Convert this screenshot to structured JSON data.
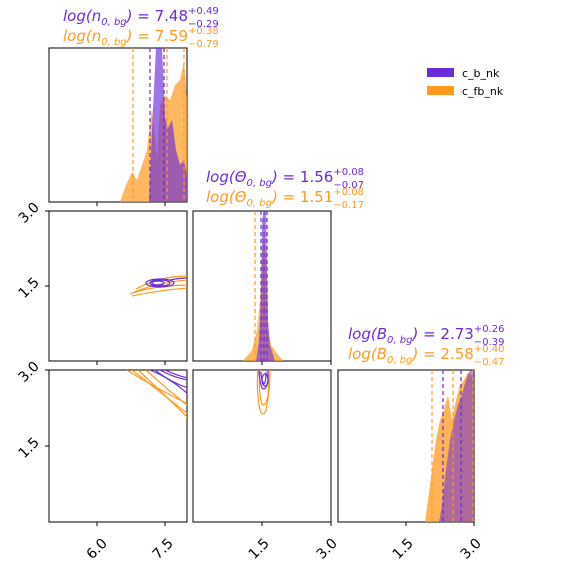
{
  "colors": {
    "c_b_nk": "#6a2bd9",
    "c_fb_nk": "#ff9a1f"
  },
  "legend": {
    "position": "top-right",
    "entries": [
      {
        "label": "c_b_nk",
        "color": "#6a2bd9"
      },
      {
        "label": "c_fb_nk",
        "color": "#ff9a1f"
      }
    ]
  },
  "titles": [
    {
      "param": "n",
      "lhs": "log(n",
      "sub": "0, bg",
      "rows": [
        {
          "series": "c_b_nk",
          "value": "7.48",
          "plus": "+0.49",
          "minus": "−0.29"
        },
        {
          "series": "c_fb_nk",
          "value": "7.59",
          "plus": "+0.38",
          "minus": "−0.79"
        }
      ]
    },
    {
      "param": "theta",
      "lhs": "log(Θ",
      "sub": "0, bg",
      "rows": [
        {
          "series": "c_b_nk",
          "value": "1.56",
          "plus": "+0.08",
          "minus": "−0.07"
        },
        {
          "series": "c_fb_nk",
          "value": "1.51",
          "plus": "+0.08",
          "minus": "−0.17"
        }
      ]
    },
    {
      "param": "B",
      "lhs": "log(B",
      "sub": "0, bg",
      "rows": [
        {
          "series": "c_b_nk",
          "value": "2.73",
          "plus": "+0.26",
          "minus": "−0.39"
        },
        {
          "series": "c_fb_nk",
          "value": "2.58",
          "plus": "+0.40",
          "minus": "−0.47"
        }
      ]
    }
  ],
  "ticks": {
    "x": [
      [
        "6.0",
        "7.5"
      ],
      [
        "1.5",
        "3.0"
      ],
      [
        "1.5",
        "3.0"
      ]
    ],
    "y": [
      [
        "3.0",
        "1.5"
      ],
      [
        "3.0",
        "1.5"
      ]
    ]
  },
  "chart_data": {
    "type": "corner",
    "parameters": [
      "log_n_0_bg",
      "log_theta_0_bg",
      "log_B_0_bg"
    ],
    "axis_ranges": {
      "n": [
        5.2,
        7.8
      ],
      "theta": [
        0.0,
        3.0
      ],
      "B": [
        0.0,
        3.0
      ]
    },
    "series": [
      {
        "name": "c_b_nk",
        "marginals": [
          {
            "param": "n",
            "median": 7.48,
            "q16": 7.19,
            "q84": 7.97
          },
          {
            "param": "theta",
            "median": 1.56,
            "q16": 1.49,
            "q84": 1.64
          },
          {
            "param": "B",
            "median": 2.73,
            "q16": 2.34,
            "q84": 2.99
          }
        ],
        "contour_centers": [
          {
            "x": "n",
            "y": "theta",
            "cx": 7.7,
            "cy": 1.55
          },
          {
            "x": "n",
            "y": "B",
            "cx": 7.5,
            "cy": 2.5
          },
          {
            "x": "theta",
            "y": "B",
            "cx": 1.55,
            "cy": 2.6
          }
        ]
      },
      {
        "name": "c_fb_nk",
        "marginals": [
          {
            "param": "n",
            "median": 7.59,
            "q16": 6.8,
            "q84": 7.97
          },
          {
            "param": "theta",
            "median": 1.51,
            "q16": 1.34,
            "q84": 1.59
          },
          {
            "param": "B",
            "median": 2.58,
            "q16": 2.11,
            "q84": 2.98
          }
        ],
        "contour_centers": [
          {
            "x": "n",
            "y": "theta",
            "cx": 7.5,
            "cy": 1.47
          },
          {
            "x": "n",
            "y": "B",
            "cx": 7.3,
            "cy": 2.6
          },
          {
            "x": "theta",
            "y": "B",
            "cx": 1.52,
            "cy": 2.4
          }
        ]
      }
    ]
  }
}
